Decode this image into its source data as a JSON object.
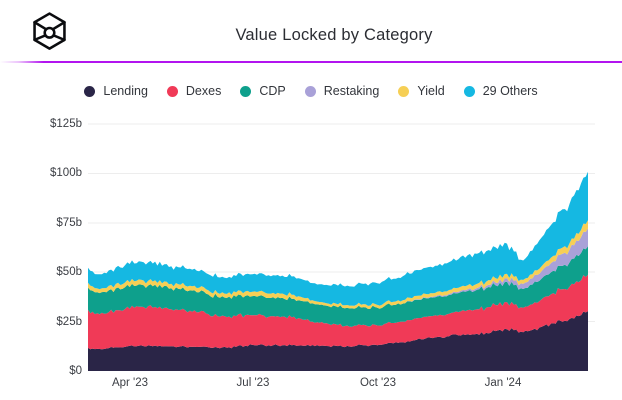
{
  "header": {
    "title": "Value Locked by Category"
  },
  "legend": [
    {
      "label": "Lending",
      "color": "#2a2547"
    },
    {
      "label": "Dexes",
      "color": "#f03a57"
    },
    {
      "label": "CDP",
      "color": "#0ea08c"
    },
    {
      "label": "Restaking",
      "color": "#a9a1d8"
    },
    {
      "label": "Yield",
      "color": "#f6cf55"
    },
    {
      "label": "29 Others",
      "color": "#15b8e2"
    }
  ],
  "y_axis": {
    "ticks": [
      "$0",
      "$25b",
      "$50b",
      "$75b",
      "$100b",
      "$125b"
    ]
  },
  "x_axis": {
    "ticks": [
      {
        "label": "Apr '23",
        "f": 0.084
      },
      {
        "label": "Jul '23",
        "f": 0.33
      },
      {
        "label": "Oct '23",
        "f": 0.58
      },
      {
        "label": "Jan '24",
        "f": 0.83
      }
    ]
  },
  "chart_data": {
    "type": "area",
    "stacked": true,
    "title": "Value Locked by Category",
    "unit": "USD billions",
    "x_start": "2023-03-01",
    "x_end": "2024-03-06",
    "interval": "weekly",
    "ylim": [
      0,
      125
    ],
    "grid": "horizontal",
    "legend_position": "top",
    "series": [
      {
        "name": "Lending",
        "color": "#2a2547",
        "values": [
          11.7,
          11.2,
          11.4,
          12.0,
          12.2,
          12.4,
          12.6,
          12.5,
          12.4,
          12.5,
          12.4,
          12.3,
          12.2,
          12.0,
          11.8,
          11.8,
          12.2,
          12.8,
          13.0,
          13.1,
          13.0,
          13.0,
          13.0,
          12.9,
          12.6,
          12.6,
          12.6,
          12.6,
          12.7,
          12.8,
          13.0,
          13.3,
          13.6,
          14.0,
          14.6,
          15.3,
          16.0,
          16.8,
          17.3,
          17.6,
          18.0,
          18.6,
          18.9,
          19.3,
          20.2,
          21.3,
          20.6,
          19.6,
          20.8,
          22.4,
          24.0,
          25.5,
          26.3,
          27.8,
          30.3
        ]
      },
      {
        "name": "Dexes",
        "color": "#f03a57",
        "values": [
          19.3,
          18.0,
          17.7,
          18.8,
          19.2,
          19.6,
          19.8,
          19.5,
          19.0,
          18.8,
          18.5,
          18.2,
          17.6,
          16.8,
          16.0,
          15.5,
          15.6,
          15.5,
          15.3,
          15.0,
          14.8,
          14.6,
          14.2,
          13.5,
          12.4,
          11.8,
          11.2,
          10.7,
          10.3,
          10.2,
          10.2,
          10.1,
          10.2,
          10.3,
          10.4,
          10.5,
          10.8,
          11.0,
          11.2,
          11.4,
          11.8,
          12.2,
          12.4,
          12.7,
          13.2,
          13.6,
          13.0,
          12.4,
          13.0,
          13.9,
          14.8,
          15.8,
          16.3,
          17.2,
          18.4
        ]
      },
      {
        "name": "CDP",
        "color": "#0ea08c",
        "values": [
          11.2,
          10.7,
          10.8,
          11.0,
          11.0,
          11.0,
          11.0,
          10.9,
          10.7,
          10.6,
          10.5,
          10.3,
          10.1,
          9.9,
          9.7,
          9.7,
          9.8,
          9.7,
          9.7,
          9.6,
          9.5,
          9.4,
          9.3,
          9.2,
          9.1,
          9.1,
          9.0,
          9.0,
          9.0,
          9.0,
          9.0,
          9.0,
          9.0,
          9.1,
          9.1,
          9.2,
          9.3,
          9.4,
          9.5,
          9.5,
          9.6,
          9.7,
          9.8,
          9.9,
          10.0,
          10.1,
          9.8,
          9.5,
          9.9,
          10.5,
          11.2,
          11.9,
          12.3,
          13.2,
          14.4
        ]
      },
      {
        "name": "Restaking",
        "color": "#a9a1d8",
        "values": [
          0,
          0,
          0,
          0,
          0,
          0,
          0,
          0,
          0,
          0,
          0,
          0,
          0,
          0,
          0,
          0,
          0,
          0,
          0,
          0,
          0,
          0,
          0,
          0,
          0,
          0,
          0,
          0,
          0,
          0,
          0,
          0,
          0,
          0,
          0,
          0.2,
          0.3,
          0.4,
          0.5,
          0.6,
          0.7,
          0.8,
          0.9,
          1.1,
          1.4,
          1.8,
          2.2,
          2.6,
          3.1,
          3.8,
          4.6,
          5.6,
          6.5,
          7.6,
          9.0
        ]
      },
      {
        "name": "Yield",
        "color": "#f6cf55",
        "values": [
          2.5,
          1.9,
          2.1,
          2.3,
          2.4,
          2.4,
          2.4,
          2.4,
          2.3,
          2.3,
          2.3,
          2.3,
          2.2,
          2.1,
          2.0,
          2.0,
          2.2,
          2.3,
          2.3,
          2.3,
          2.2,
          2.2,
          2.1,
          1.9,
          1.6,
          1.4,
          1.3,
          1.4,
          1.4,
          1.5,
          1.5,
          1.5,
          1.6,
          1.6,
          1.7,
          1.7,
          1.8,
          1.8,
          1.9,
          1.9,
          2.0,
          2.1,
          2.1,
          2.2,
          2.2,
          2.3,
          2.1,
          2.0,
          2.2,
          2.5,
          2.8,
          3.1,
          3.3,
          3.7,
          4.2
        ]
      },
      {
        "name": "29 Others",
        "color": "#15b8e2",
        "values": [
          7.6,
          7.2,
          7.5,
          8.3,
          8.7,
          9.0,
          9.2,
          9.1,
          8.9,
          8.8,
          8.7,
          8.6,
          8.4,
          8.2,
          8.0,
          8.0,
          8.3,
          8.7,
          8.9,
          9.0,
          9.0,
          9.1,
          9.2,
          9.1,
          8.9,
          9.0,
          9.2,
          9.5,
          9.8,
          10.2,
          10.6,
          10.9,
          11.3,
          11.7,
          12.1,
          12.5,
          13.0,
          13.4,
          13.8,
          14.1,
          14.5,
          15.2,
          15.2,
          15.4,
          15.6,
          15.8,
          12.8,
          9.8,
          12.0,
          14.5,
          16.5,
          19.0,
          19.8,
          22.0,
          24.5
        ]
      }
    ]
  }
}
